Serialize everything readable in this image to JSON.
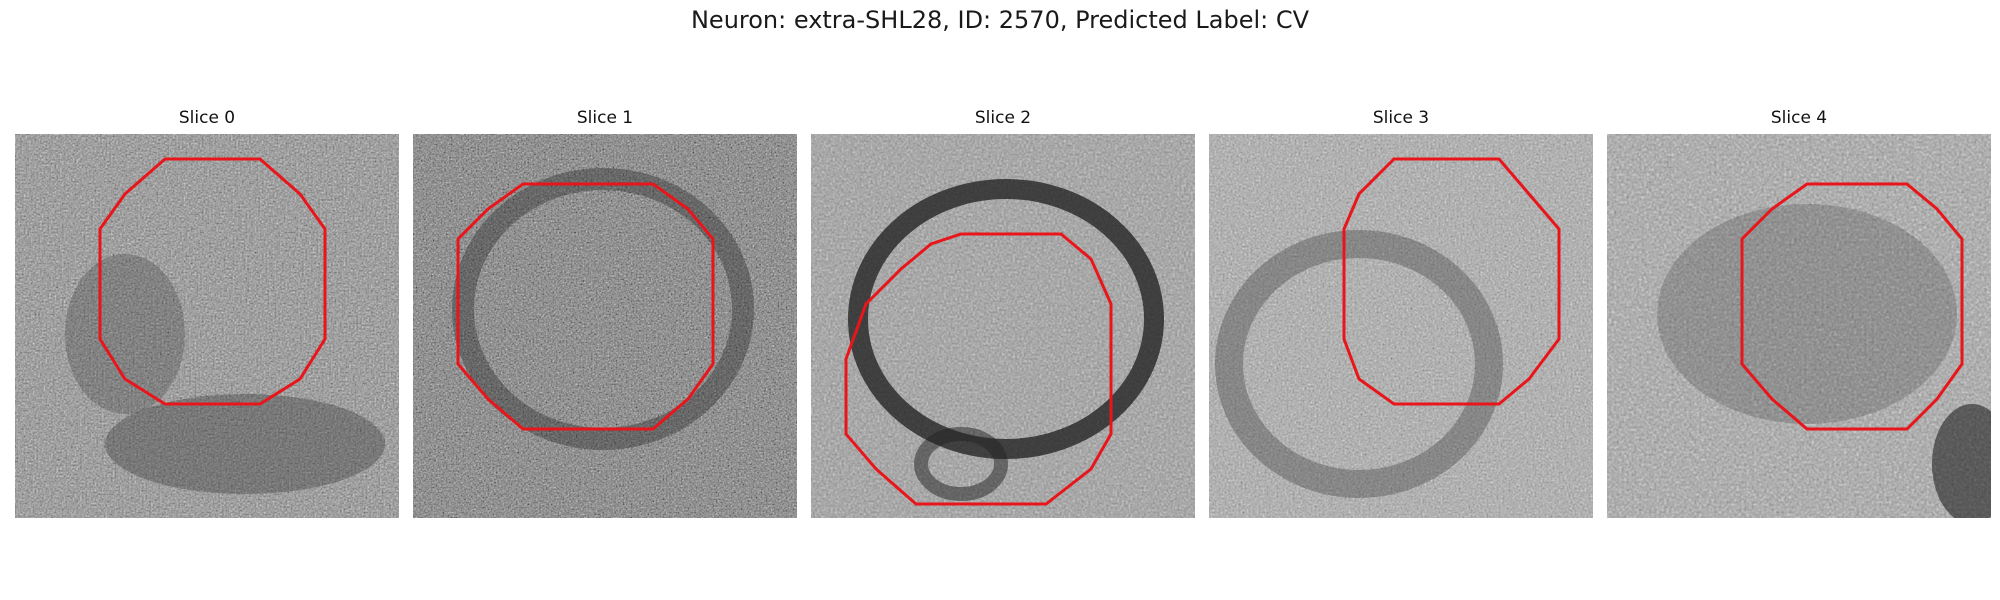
{
  "figure": {
    "title": "Neuron: extra-SHL28, ID: 2570, Predicted Label: CV",
    "outline_color": "#e8161b",
    "image_colormap": "grayscale"
  },
  "slices": [
    {
      "label": "Slice 0"
    },
    {
      "label": "Slice 1"
    },
    {
      "label": "Slice 2"
    },
    {
      "label": "Slice 3"
    },
    {
      "label": "Slice 4"
    }
  ]
}
